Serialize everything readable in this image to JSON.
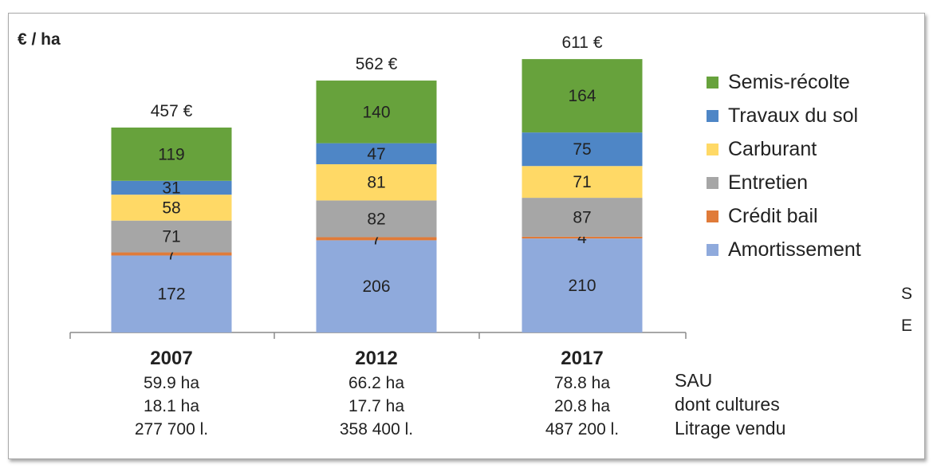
{
  "chart_data": {
    "type": "bar",
    "stacked": true,
    "y_unit_label": "€ / ha",
    "categories": [
      "2007",
      "2012",
      "2017"
    ],
    "series": [
      {
        "name": "Amortissement",
        "values": [
          172,
          206,
          210
        ],
        "color": "#8faadc"
      },
      {
        "name": "Crédit bail",
        "values": [
          7,
          7,
          4
        ],
        "color": "#e07b39"
      },
      {
        "name": "Entretien",
        "values": [
          71,
          82,
          87
        ],
        "color": "#a6a6a6"
      },
      {
        "name": "Carburant",
        "values": [
          58,
          81,
          71
        ],
        "color": "#ffd966"
      },
      {
        "name": "Travaux du sol",
        "values": [
          31,
          47,
          75
        ],
        "color": "#4e86c6"
      },
      {
        "name": "Semis-récolte",
        "values": [
          119,
          140,
          164
        ],
        "color": "#67a23c"
      }
    ],
    "totals": [
      "457 €",
      "562 €",
      "611 €"
    ],
    "legend_order": [
      "Semis-récolte",
      "Travaux du sol",
      "Carburant",
      "Entretien",
      "Crédit bail",
      "Amortissement"
    ],
    "legend_position": "right",
    "grid": false,
    "category_details": [
      {
        "sau": "59.9 ha",
        "cultures": "18.1 ha",
        "litrage": "277 700 l."
      },
      {
        "sau": "66.2 ha",
        "cultures": "17.7 ha",
        "litrage": "358 400 l."
      },
      {
        "sau": "78.8 ha",
        "cultures": "20.8 ha",
        "litrage": "487 200 l."
      }
    ],
    "detail_row_labels": [
      "SAU",
      "dont cultures",
      "Litrage vendu"
    ],
    "stray_text": [
      "S",
      "E"
    ]
  }
}
